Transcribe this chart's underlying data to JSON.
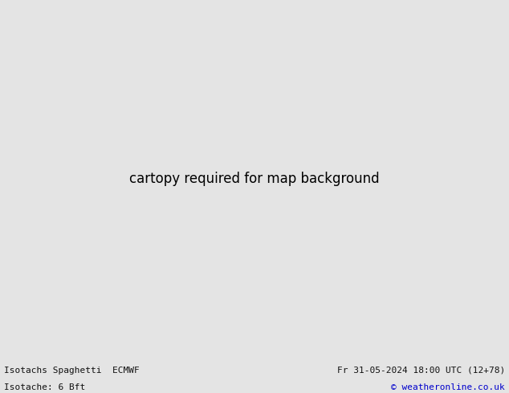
{
  "title_left_line1": "Isotachs Spaghetti  ECMWF",
  "title_left_line2": "Isotache: 6 Bft",
  "title_right_line1": "Fr 31-05-2024 18:00 UTC (12+78)",
  "title_right_line2": "© weatheronline.co.uk",
  "bg_color": "#e4e4e4",
  "land_color": "#c8f0c8",
  "coast_color": "#909090",
  "footer_bg": "#d8d8d8",
  "footer_text_color": "#111111",
  "copyright_color": "#0000cc",
  "fig_width": 6.34,
  "fig_height": 4.9,
  "dpi": 100,
  "map_extent": [
    -15.0,
    12.0,
    46.0,
    62.0
  ],
  "line_colors": [
    "#808080",
    "#606060",
    "#505050",
    "#ff0000",
    "#00aaff",
    "#ff00ff",
    "#ffaa00",
    "#00cc00",
    "#ff6600",
    "#aa00aa",
    "#0000ff",
    "#ff69b4",
    "#00cccc",
    "#cccc00",
    "#8B0000",
    "#006400",
    "#aa5500",
    "#5500aa"
  ],
  "spaghetti_seed": 123
}
